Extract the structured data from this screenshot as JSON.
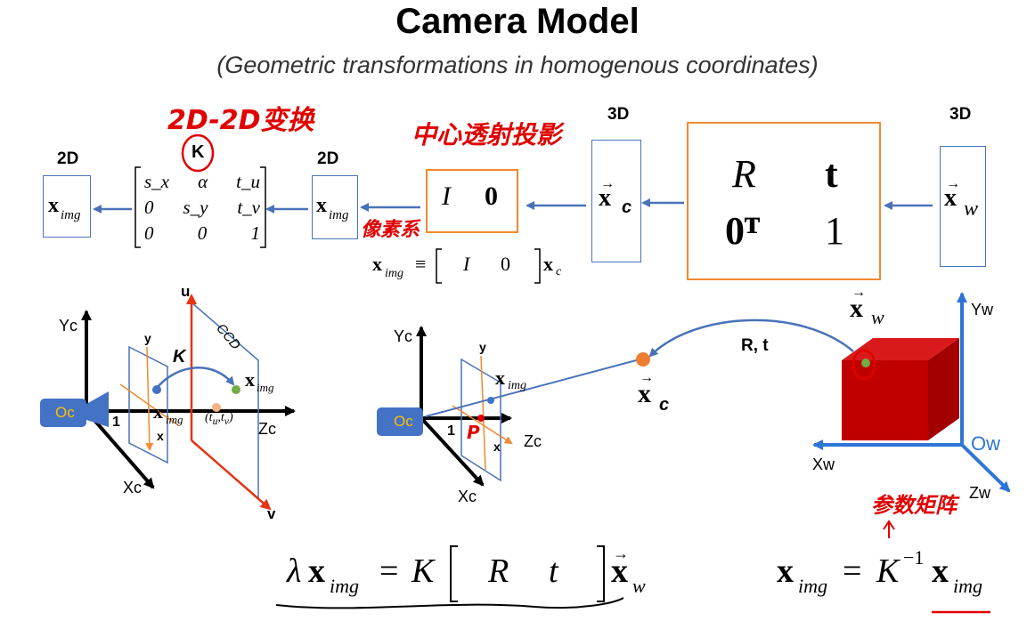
{
  "title": "Camera Model",
  "subtitle": "(Geometric transformations in homogenous coordinates)",
  "annotations": {
    "transform_2d": "2D-2D变换",
    "central_projection": "中心透射投影",
    "pixel_coord": "像素系",
    "intrinsic_params": "参数矩阵",
    "K_circled": "K"
  },
  "dims": {
    "d2_left": "2D",
    "d2_mid": "2D",
    "d3_cam": "3D",
    "d3_world": "3D"
  },
  "matrices": {
    "K": [
      [
        "s_x",
        "α",
        "t_u"
      ],
      [
        "0",
        "s_y",
        "t_v"
      ],
      [
        "0",
        "0",
        "1"
      ]
    ],
    "projection": [
      "I",
      "0"
    ],
    "extrinsic": [
      [
        "R",
        "t"
      ],
      [
        "0ᵀ",
        "1"
      ]
    ]
  },
  "vectors": {
    "x_img": "x",
    "x_img_sub": "img",
    "x_c": "x",
    "x_c_sub": "c",
    "x_w": "x",
    "x_w_sub": "w"
  },
  "equations": {
    "proj_lhs": "x",
    "proj_equiv": "≡",
    "proj_I": "I",
    "proj_zero": "0",
    "main_lambda": "λ",
    "main_eq": "=",
    "main_K": "K",
    "main_R": "R",
    "main_t": "t",
    "inv_eq": "=",
    "inv_K": "K",
    "inv_exp": "−1"
  },
  "left_diagram": {
    "yc": "Yc",
    "xc": "Xc",
    "zc": "Zc",
    "oc": "Oc",
    "y": "y",
    "x": "x",
    "u": "u",
    "v": "v",
    "one": "1",
    "ccd": "CCD",
    "K": "K",
    "tuv": "(t",
    "tu_sub": "u",
    "tv_sub": "v"
  },
  "mid_diagram": {
    "yc": "Yc",
    "xc": "Xc",
    "zc": "Zc",
    "oc": "Oc",
    "y": "y",
    "x": "x",
    "one": "1",
    "P": "P",
    "Rt": "R, t"
  },
  "right_diagram": {
    "yw": "Yw",
    "xw": "Xw",
    "zw": "Zw",
    "ow": "Ow"
  },
  "colors": {
    "arrow": "#4a72b8",
    "orange": "#f08a30",
    "red": "#e00000",
    "cube": "#c00000",
    "origin": "#4472c4"
  }
}
